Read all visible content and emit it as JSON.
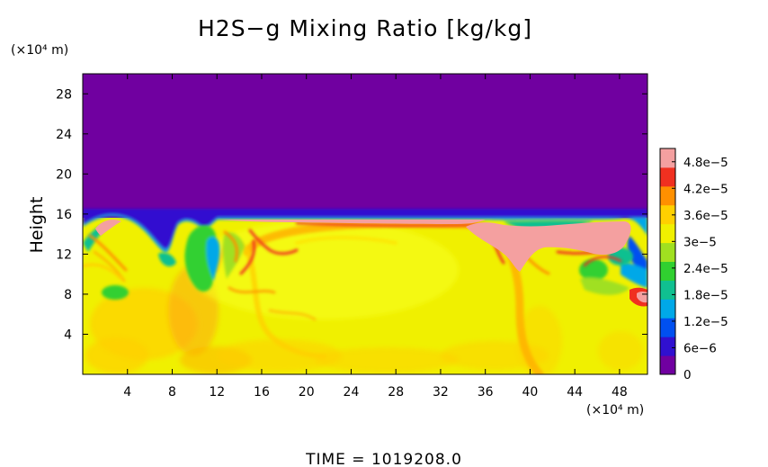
{
  "chart_data": {
    "type": "heatmap",
    "title": "H2S−g Mixing Ratio [kg/kg]",
    "xlabel": "",
    "ylabel": "Height",
    "x_unit": "(×10⁴ m)",
    "y_unit": "(×10⁴ m)",
    "xlim": [
      0,
      50.5
    ],
    "ylim": [
      0,
      30
    ],
    "x_ticks": [
      "4",
      "8",
      "12",
      "16",
      "20",
      "24",
      "28",
      "32",
      "36",
      "40",
      "44",
      "48"
    ],
    "y_ticks": [
      "4",
      "8",
      "12",
      "16",
      "20",
      "24",
      "28"
    ],
    "footer": "TIME  =  1019208.0",
    "colorbar": {
      "min": 0,
      "max": 5.1e-05,
      "ticks": [
        "0",
        "6e−6",
        "1.2e−5",
        "1.8e−5",
        "2.4e−5",
        "3e−5",
        "3.6e−5",
        "4.2e−5",
        "4.8e−5"
      ],
      "colors": [
        "#7000a0",
        "#3010d0",
        "#0050f0",
        "#00a8e8",
        "#10c090",
        "#30d030",
        "#a0e020",
        "#f0f000",
        "#ffd000",
        "#ff9000",
        "#f03020",
        "#f4a0a0"
      ]
    },
    "fields": {
      "above_cloud_top": 0,
      "cloud_top_height": 15.5,
      "interior_typical": 3.5e-05,
      "max_layer": 4.9e-05
    }
  }
}
